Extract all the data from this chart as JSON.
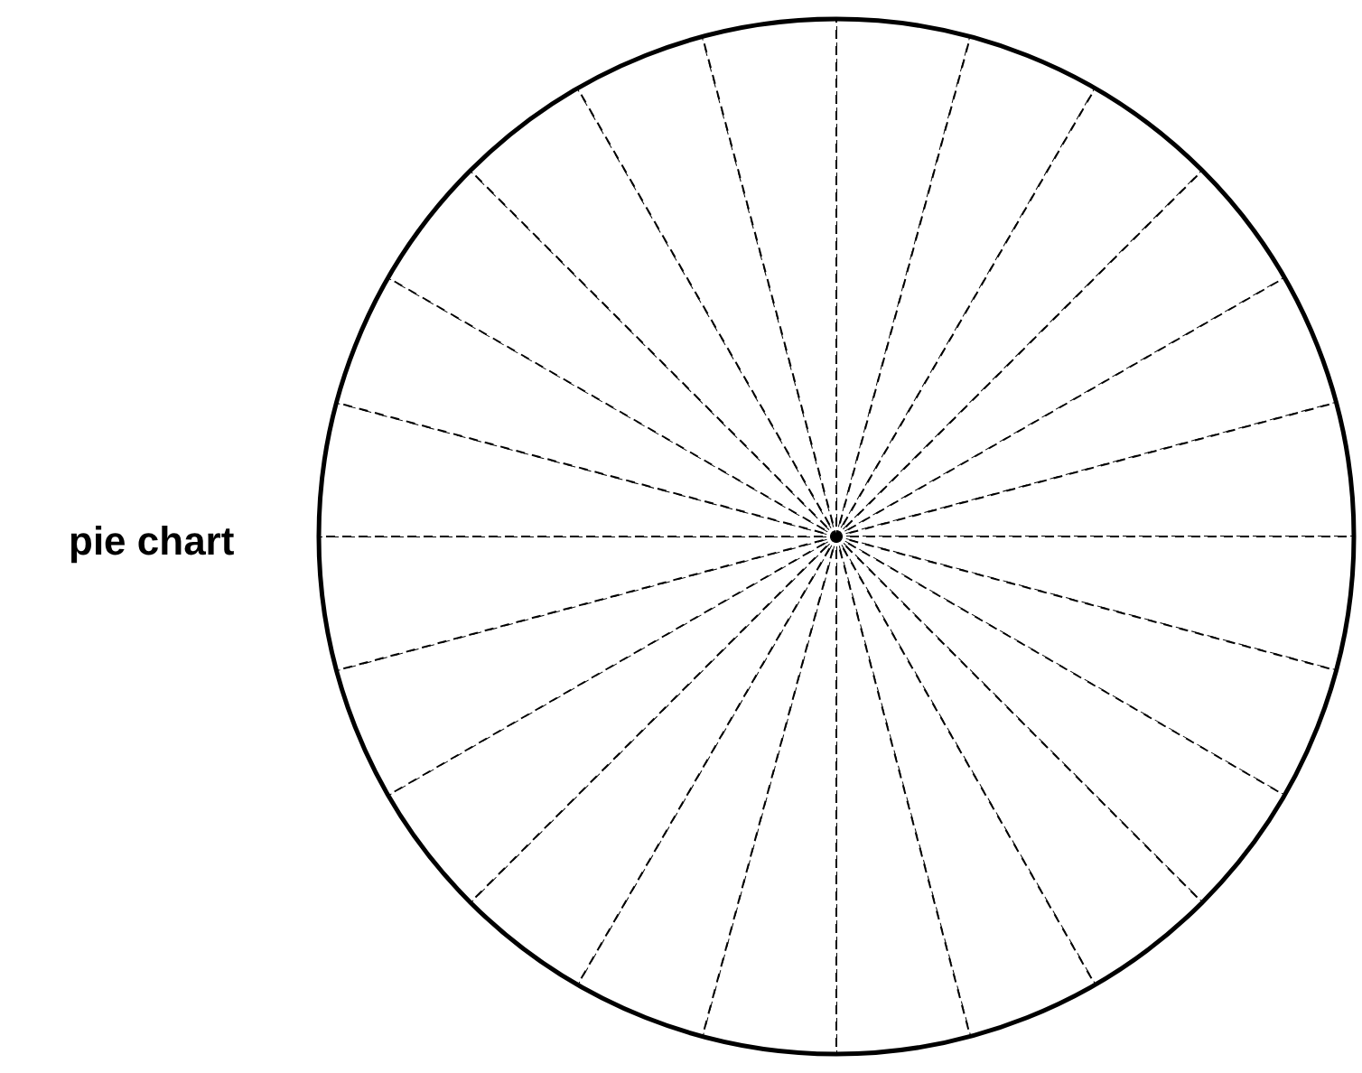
{
  "chart_data": {
    "type": "pie",
    "ylabel": "pie chart",
    "categories": [
      null,
      null,
      null,
      null,
      null,
      null,
      null,
      null,
      null,
      null,
      null,
      null,
      null,
      null,
      null,
      null,
      null,
      null,
      null,
      null,
      null,
      null,
      null,
      null
    ],
    "values": [
      4.1667,
      4.1667,
      4.1667,
      4.1667,
      4.1667,
      4.1667,
      4.1667,
      4.1667,
      4.1667,
      4.1667,
      4.1667,
      4.1667,
      4.1667,
      4.1667,
      4.1667,
      4.1667,
      4.1667,
      4.1667,
      4.1667,
      4.1667,
      4.1667,
      4.1667,
      4.1667,
      4.1667
    ],
    "colors": [
      "#ffffff",
      "#ffffff",
      "#ffffff",
      "#ffffff",
      "#ffffff",
      "#ffffff",
      "#ffffff",
      "#ffffff",
      "#ffffff",
      "#ffffff",
      "#ffffff",
      "#ffffff",
      "#ffffff",
      "#ffffff",
      "#ffffff",
      "#ffffff",
      "#ffffff",
      "#ffffff",
      "#ffffff",
      "#ffffff",
      "#ffffff",
      "#ffffff",
      "#ffffff",
      "#ffffff"
    ],
    "line_style": "dashed",
    "legend": false
  }
}
